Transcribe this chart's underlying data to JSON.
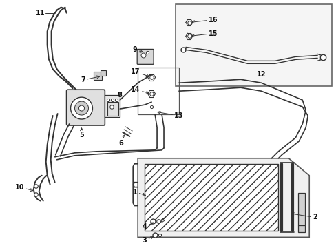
{
  "bg_color": "#ffffff",
  "line_color": "#333333",
  "fig_width": 4.89,
  "fig_height": 3.6,
  "dpi": 100,
  "label_fontsize": 7.0,
  "label_color": "#111111"
}
